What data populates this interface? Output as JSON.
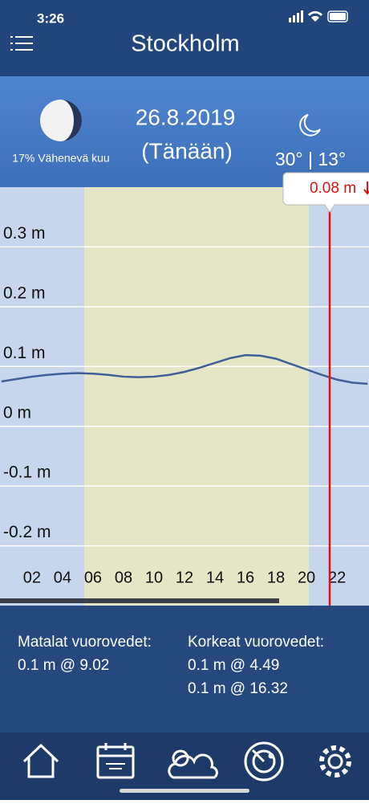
{
  "status_bar": {
    "time": "3:26"
  },
  "header": {
    "title": "Stockholm"
  },
  "info": {
    "moon": "17% Vähenevä kuu",
    "date": "26.8.2019",
    "day": "(Tänään)",
    "temperature": "30° | 13°"
  },
  "chart_data": {
    "type": "line",
    "color": "#3f5f96",
    "x": [
      0,
      1,
      2,
      3,
      4,
      5,
      6,
      7,
      8,
      9,
      10,
      11,
      12,
      13,
      14,
      15,
      16,
      17,
      18,
      19,
      20,
      21,
      22,
      23,
      24
    ],
    "values": [
      0.075,
      0.079,
      0.083,
      0.086,
      0.088,
      0.089,
      0.088,
      0.086,
      0.083,
      0.082,
      0.083,
      0.086,
      0.091,
      0.098,
      0.106,
      0.114,
      0.119,
      0.118,
      0.113,
      0.104,
      0.095,
      0.086,
      0.078,
      0.073,
      0.071
    ],
    "xlim": [
      -0.1,
      24.1
    ],
    "xticks": [
      {
        "value": 2,
        "label": "02"
      },
      {
        "value": 4,
        "label": "04"
      },
      {
        "value": 6,
        "label": "06"
      },
      {
        "value": 8,
        "label": "08"
      },
      10,
      12,
      14,
      16,
      18,
      20,
      22
    ],
    "ylim": [
      -0.3,
      0.4
    ],
    "yticks": [
      {
        "value": 0.3,
        "label": "0.3 m"
      },
      {
        "value": 0.2,
        "label": "0.2 m"
      },
      {
        "value": 0.1,
        "label": "0.1 m"
      },
      {
        "value": 0,
        "label": "0 m"
      },
      {
        "value": -0.1,
        "label": "-0.1 m"
      },
      {
        "value": -0.2,
        "label": "-0.2 m"
      }
    ],
    "grid": true,
    "current_label": "0.08 m"
  },
  "tides": {
    "low_title": "Matalat vuorovedet:",
    "low": [
      "0.1 m @ 9.02"
    ],
    "high_title": "Korkeat vuorovedet:",
    "high": [
      "0.1 m @ 4.49",
      "0.1 m @ 16.32"
    ]
  }
}
